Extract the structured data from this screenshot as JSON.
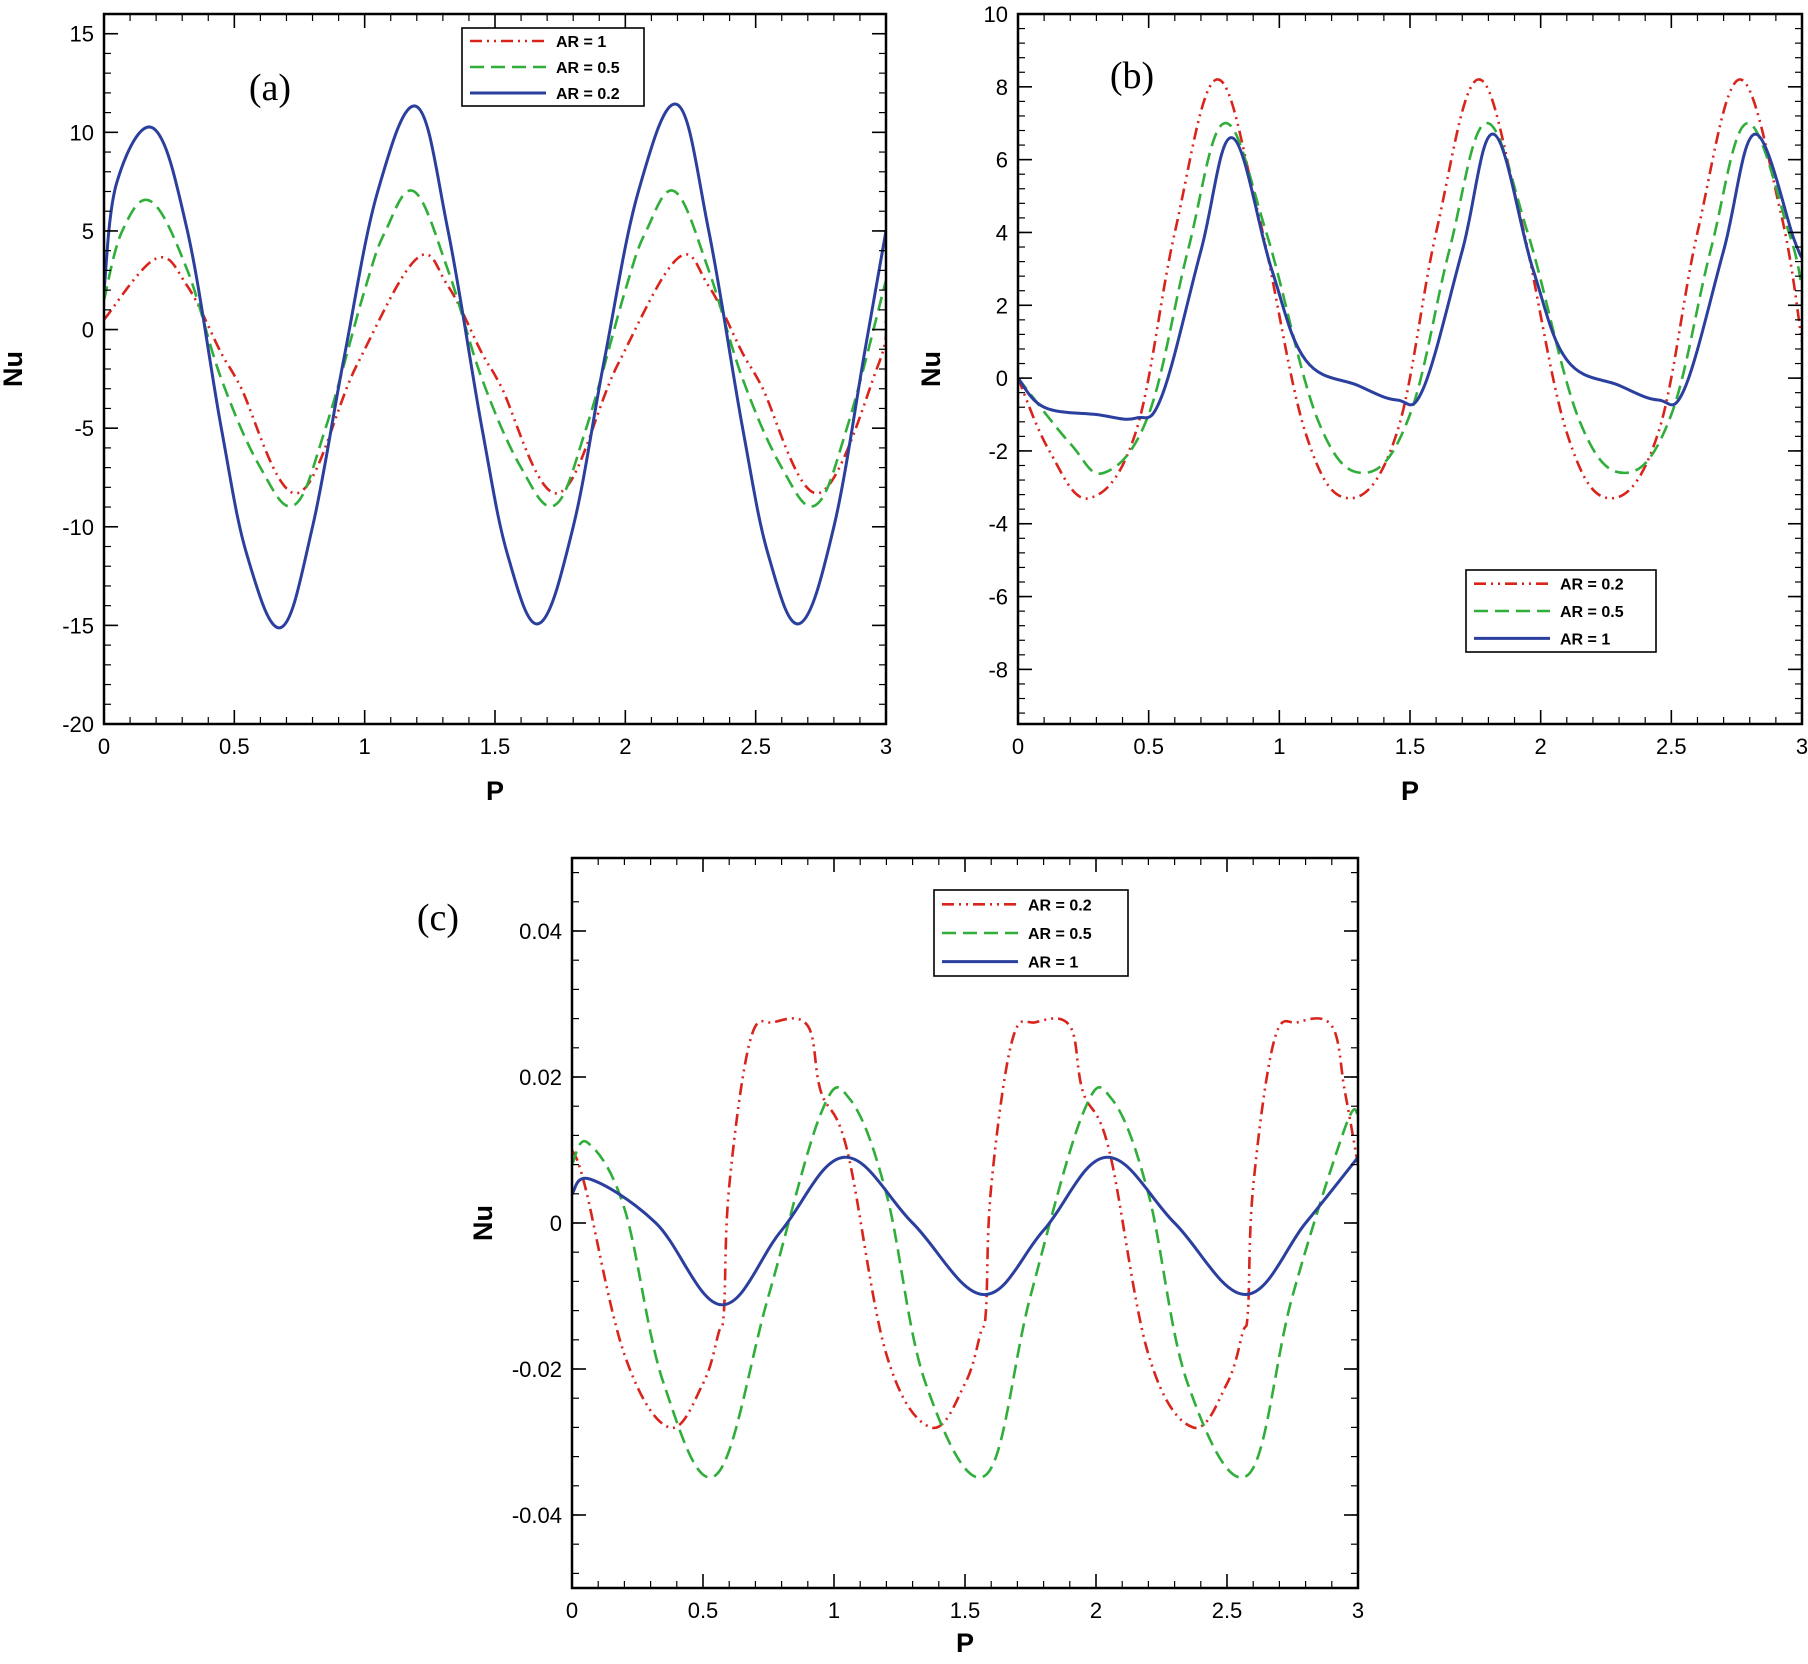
{
  "colors": {
    "red": "#d9241c",
    "green": "#2fae3a",
    "blue": "#2b3f9e"
  },
  "chart_data": [
    {
      "type": "line",
      "panel_tag": "(a)",
      "xlabel": "P",
      "ylabel": "Nu",
      "xlim": [
        0,
        3
      ],
      "ylim": [
        -20,
        16
      ],
      "xticks": [
        0,
        0.5,
        1,
        1.5,
        2,
        2.5,
        3
      ],
      "xtick_labels": [
        "0",
        "0.5",
        "1",
        "1.5",
        "2",
        "2.5",
        "3"
      ],
      "yticks": [
        -20,
        -15,
        -10,
        -5,
        0,
        5,
        10,
        15
      ],
      "ytick_labels": [
        "-20",
        "-15",
        "-10",
        "-5",
        "0",
        "5",
        "10",
        "15"
      ],
      "grid": false,
      "legend_position": "top-right",
      "series": [
        {
          "name": "AR = 1",
          "style": "dashdotdot",
          "color": "red",
          "x": [
            0,
            0.2,
            0.32,
            0.45,
            0.52,
            0.74,
            0.97,
            1.2,
            1.32,
            1.45,
            1.52,
            1.74,
            1.97,
            2.2,
            2.32,
            2.45,
            2.52,
            2.74,
            2.97,
            3.0
          ],
          "y": [
            0.5,
            3.6,
            2.2,
            -1.2,
            -2.8,
            -8.3,
            -1.8,
            3.6,
            2.2,
            -1.2,
            -2.8,
            -8.3,
            -1.8,
            3.6,
            2.2,
            -1.2,
            -2.8,
            -8.3,
            -1.8,
            0.5
          ]
        },
        {
          "name": "AR = 0.5",
          "style": "dash",
          "color": "green",
          "x": [
            0,
            0.07,
            0.18,
            0.32,
            0.45,
            0.6,
            0.73,
            0.85,
            1.0,
            1.08,
            1.19,
            1.32,
            1.45,
            1.6,
            1.73,
            1.85,
            2.0,
            2.08,
            2.19,
            2.32,
            2.45,
            2.6,
            2.73,
            2.85,
            3.0
          ],
          "y": [
            1.5,
            5.0,
            6.5,
            3.0,
            -2.5,
            -7.0,
            -8.9,
            -5.0,
            2.0,
            5.0,
            7.0,
            3.0,
            -2.5,
            -7.0,
            -8.9,
            -5.0,
            2.0,
            5.0,
            7.0,
            3.0,
            -2.5,
            -7.0,
            -8.9,
            -5.0,
            2.5
          ]
        },
        {
          "name": "AR = 0.2",
          "style": "solid",
          "color": "blue",
          "x": [
            0,
            0.05,
            0.19,
            0.32,
            0.45,
            0.55,
            0.68,
            0.8,
            0.92,
            1.05,
            1.2,
            1.32,
            1.45,
            1.55,
            1.67,
            1.8,
            1.92,
            2.05,
            2.2,
            2.32,
            2.45,
            2.55,
            2.67,
            2.8,
            2.92,
            3.0
          ],
          "y": [
            2.0,
            7.5,
            10.2,
            5.0,
            -5.0,
            -11.5,
            -15.1,
            -10.0,
            -1.5,
            7.0,
            11.3,
            5.0,
            -5.0,
            -11.5,
            -14.9,
            -10.0,
            -1.5,
            7.0,
            11.4,
            5.0,
            -5.0,
            -11.5,
            -14.9,
            -10.0,
            -1.0,
            5.0
          ]
        }
      ]
    },
    {
      "type": "line",
      "panel_tag": "(b)",
      "xlabel": "P",
      "ylabel": "Nu",
      "xlim": [
        0,
        3
      ],
      "ylim": [
        -9.5,
        10
      ],
      "xticks": [
        0,
        0.5,
        1,
        1.5,
        2,
        2.5,
        3
      ],
      "xtick_labels": [
        "0",
        "0.5",
        "1",
        "1.5",
        "2",
        "2.5",
        "3"
      ],
      "yticks": [
        -8,
        -6,
        -4,
        -2,
        0,
        2,
        4,
        6,
        8,
        10
      ],
      "ytick_labels": [
        "-8",
        "-6",
        "-4",
        "-2",
        "0",
        "2",
        "4",
        "6",
        "8",
        "10"
      ],
      "grid": false,
      "legend_position": "bottom-right",
      "series": [
        {
          "name": "AR = 0.2",
          "style": "dashdotdot",
          "color": "red",
          "x": [
            0,
            0.12,
            0.27,
            0.45,
            0.6,
            0.76,
            0.92,
            1.1,
            1.27,
            1.45,
            1.6,
            1.76,
            1.92,
            2.1,
            2.27,
            2.45,
            2.6,
            2.76,
            2.92,
            3.0
          ],
          "y": [
            0,
            -2.0,
            -3.3,
            -1.5,
            4.0,
            8.2,
            4.5,
            -1.5,
            -3.3,
            -1.5,
            4.0,
            8.2,
            4.5,
            -1.5,
            -3.3,
            -1.5,
            4.0,
            8.2,
            4.5,
            1.0
          ]
        },
        {
          "name": "AR = 0.5",
          "style": "dash",
          "color": "green",
          "x": [
            0,
            0.2,
            0.33,
            0.5,
            0.65,
            0.79,
            0.95,
            1.15,
            1.33,
            1.5,
            1.65,
            1.79,
            1.95,
            2.15,
            2.33,
            2.5,
            2.65,
            2.79,
            2.95,
            3.0
          ],
          "y": [
            0,
            -1.8,
            -2.6,
            -1.0,
            3.5,
            7.0,
            4.0,
            -1.2,
            -2.6,
            -1.0,
            3.5,
            7.0,
            4.0,
            -1.2,
            -2.6,
            -1.0,
            3.5,
            7.0,
            4.0,
            2.5
          ]
        },
        {
          "name": "AR = 1",
          "style": "solid",
          "color": "blue",
          "x": [
            0,
            0.1,
            0.3,
            0.45,
            0.55,
            0.7,
            0.82,
            0.97,
            1.1,
            1.3,
            1.45,
            1.55,
            1.7,
            1.82,
            1.97,
            2.1,
            2.3,
            2.45,
            2.55,
            2.7,
            2.82,
            2.97,
            3.0
          ],
          "y": [
            0,
            -0.8,
            -1.0,
            -1.1,
            -0.5,
            3.5,
            6.6,
            3.0,
            0.5,
            -0.2,
            -0.6,
            -0.3,
            3.5,
            6.7,
            3.0,
            0.5,
            -0.2,
            -0.6,
            -0.3,
            3.5,
            6.7,
            3.8,
            3.3
          ]
        }
      ]
    },
    {
      "type": "line",
      "panel_tag": "(c)",
      "xlabel": "P",
      "ylabel": "Nu",
      "xlim": [
        0,
        3
      ],
      "ylim": [
        -0.05,
        0.05
      ],
      "xticks": [
        0,
        0.5,
        1,
        1.5,
        2,
        2.5,
        3
      ],
      "xtick_labels": [
        "0",
        "0.5",
        "1",
        "1.5",
        "2",
        "2.5",
        "3"
      ],
      "yticks": [
        -0.04,
        -0.02,
        0,
        0.02,
        0.04
      ],
      "ytick_labels": [
        "-0.04",
        "-0.02",
        "0",
        "0.02",
        "0.04"
      ],
      "grid": false,
      "legend_position": "top-right",
      "series": [
        {
          "name": "AR = 0.2",
          "style": "dashdotdot",
          "color": "red",
          "x": [
            0,
            0.05,
            0.2,
            0.37,
            0.5,
            0.56,
            0.58,
            0.6,
            0.68,
            0.77,
            0.9,
            0.95,
            1.05,
            1.2,
            1.37,
            1.5,
            1.56,
            1.58,
            1.6,
            1.68,
            1.77,
            1.9,
            1.95,
            2.05,
            2.2,
            2.37,
            2.5,
            2.56,
            2.58,
            2.6,
            2.68,
            2.77,
            2.9,
            2.95,
            3.0
          ],
          "y": [
            0.01,
            0.005,
            -0.018,
            -0.028,
            -0.022,
            -0.015,
            -0.012,
            0.005,
            0.025,
            0.0275,
            0.027,
            0.018,
            0.01,
            -0.018,
            -0.028,
            -0.022,
            -0.015,
            -0.012,
            0.005,
            0.025,
            0.0275,
            0.027,
            0.018,
            0.01,
            -0.018,
            -0.028,
            -0.022,
            -0.015,
            -0.012,
            0.005,
            0.025,
            0.0275,
            0.027,
            0.018,
            0.008
          ]
        },
        {
          "name": "AR = 0.5",
          "style": "dash",
          "color": "green",
          "x": [
            0,
            0.06,
            0.2,
            0.35,
            0.55,
            0.75,
            0.95,
            1.06,
            1.2,
            1.35,
            1.58,
            1.75,
            1.95,
            2.06,
            2.2,
            2.35,
            2.58,
            2.75,
            2.95,
            3.0
          ],
          "y": [
            0.008,
            0.011,
            0.002,
            -0.022,
            -0.0345,
            -0.01,
            0.015,
            0.017,
            0.004,
            -0.022,
            -0.0345,
            -0.01,
            0.015,
            0.017,
            0.004,
            -0.022,
            -0.0345,
            -0.01,
            0.013,
            0.015
          ]
        },
        {
          "name": "AR = 1",
          "style": "solid",
          "color": "blue",
          "x": [
            0,
            0.07,
            0.32,
            0.57,
            0.8,
            1.04,
            1.3,
            1.57,
            1.8,
            2.04,
            2.3,
            2.57,
            2.8,
            3.0
          ],
          "y": [
            0.004,
            0.006,
            0.0,
            -0.0112,
            -0.001,
            0.009,
            0.0,
            -0.0098,
            -0.001,
            0.009,
            0.0,
            -0.0098,
            0.0,
            0.009
          ]
        }
      ]
    }
  ]
}
